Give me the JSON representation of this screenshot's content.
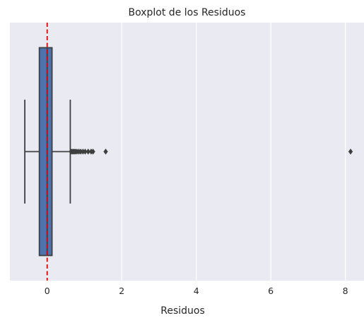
{
  "chart_data": {
    "type": "boxplot",
    "orientation": "horizontal",
    "title": "Boxplot de los Residuos",
    "xlabel": "Residuos",
    "ylabel": "",
    "xlim": [
      -1.0,
      8.5
    ],
    "xticks": [
      0,
      2,
      4,
      6,
      8
    ],
    "xtick_labels": [
      "0",
      "2",
      "4",
      "6",
      "8"
    ],
    "grid": true,
    "box": {
      "q1": -0.21,
      "median": 0.0,
      "q3": 0.13,
      "whisker_low": -0.6,
      "whisker_high": 0.62
    },
    "outliers": [
      0.64,
      0.67,
      0.7,
      0.73,
      0.76,
      0.8,
      0.85,
      0.9,
      0.96,
      1.02,
      1.1,
      1.18,
      1.23,
      1.57,
      8.14
    ],
    "reference_line": {
      "x": 0,
      "style": "dashed"
    },
    "colors": {
      "background": "#eaeaf2",
      "grid": "#ffffff",
      "box_fill": "#4c72b0",
      "box_edge": "#3f3f3f",
      "outlier": "#3f3f3f",
      "reference_line": "#e50000"
    }
  }
}
